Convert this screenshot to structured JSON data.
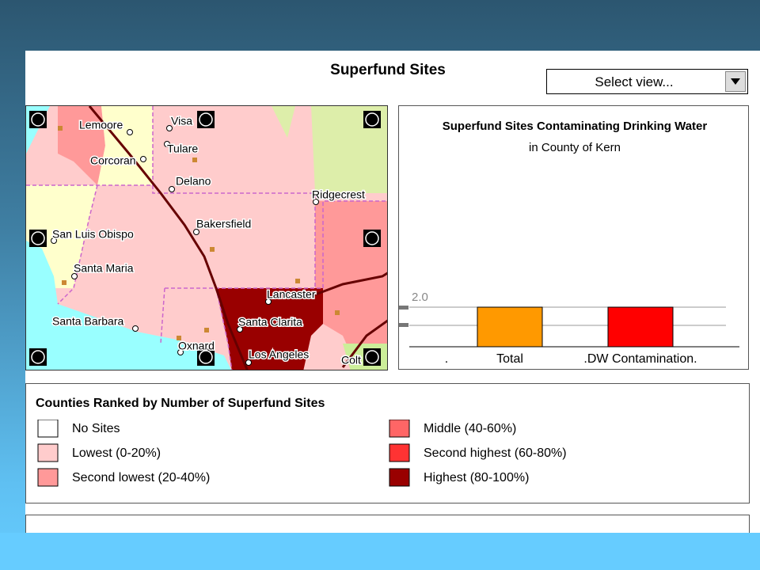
{
  "header": {
    "title": "Superfund Sites",
    "select_view": "Select view..."
  },
  "map": {
    "cities": [
      {
        "label": "Lemoore"
      },
      {
        "label": "Visa"
      },
      {
        "label": "Tulare"
      },
      {
        "label": "Corcoran"
      },
      {
        "label": "Delano"
      },
      {
        "label": "Ridgecrest"
      },
      {
        "label": "Bakersfield"
      },
      {
        "label": "San Luis Obispo"
      },
      {
        "label": "Santa Maria"
      },
      {
        "label": "Lancaster"
      },
      {
        "label": "Santa Barbara"
      },
      {
        "label": "Santa Clarita"
      },
      {
        "label": "Oxnard"
      },
      {
        "label": "Los Angeles"
      },
      {
        "label": "Colt"
      }
    ]
  },
  "chart_data": {
    "type": "bar",
    "title": "Superfund Sites Contaminating Drinking Water",
    "subtitle": "in County of  Kern",
    "categories": [
      ".",
      "Total",
      ".DW Contamination."
    ],
    "values": [
      null,
      2,
      2
    ],
    "colors": [
      null,
      "#ff9900",
      "#ff0000"
    ],
    "ylim": [
      0,
      2
    ],
    "yticks": [
      {
        "value": 2,
        "label": "2.0"
      }
    ]
  },
  "legend": {
    "title": "Counties Ranked by Number of Superfund Sites",
    "items": [
      {
        "label": "No Sites",
        "color": "#ffffff"
      },
      {
        "label": "Lowest (0-20%)",
        "color": "#ffcccc"
      },
      {
        "label": "Second lowest (20-40%)",
        "color": "#ff9999"
      },
      {
        "label": "Middle (40-60%)",
        "color": "#ff6666"
      },
      {
        "label": "Second highest (60-80%)",
        "color": "#ff3333"
      },
      {
        "label": "Highest (80-100%)",
        "color": "#990000"
      }
    ]
  }
}
